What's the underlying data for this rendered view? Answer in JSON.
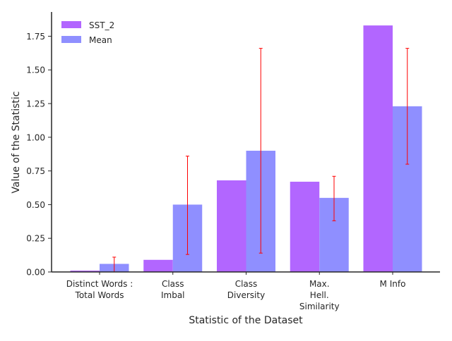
{
  "chart_data": {
    "type": "bar",
    "title": "",
    "xlabel": "Statistic of the Dataset",
    "ylabel": "Value of the Statistic",
    "ylim": [
      0,
      1.93
    ],
    "yticks": [
      "0.00",
      "0.25",
      "0.50",
      "0.75",
      "1.00",
      "1.25",
      "1.50",
      "1.75"
    ],
    "ytick_values": [
      0,
      0.25,
      0.5,
      0.75,
      1.0,
      1.25,
      1.5,
      1.75
    ],
    "categories": [
      [
        "Distinct Words :",
        "Total Words"
      ],
      [
        "Class",
        "Imbal"
      ],
      [
        "Class",
        "Diversity"
      ],
      [
        "Max.",
        "Hell.",
        "Similarity"
      ],
      [
        "M Info"
      ]
    ],
    "series": [
      {
        "name": "SST_2",
        "color": "#b266ff",
        "values": [
          0.01,
          0.09,
          0.68,
          0.67,
          1.83
        ]
      },
      {
        "name": "Mean",
        "color": "#8f8fff",
        "values": [
          0.06,
          0.5,
          0.9,
          0.55,
          1.23
        ],
        "error_low": [
          0.0,
          0.13,
          0.14,
          0.38,
          0.8
        ],
        "error_high": [
          0.11,
          0.86,
          1.66,
          0.71,
          1.66
        ],
        "error_color": "#ff0000"
      }
    ],
    "legend_position": "top-left",
    "grid": false
  }
}
